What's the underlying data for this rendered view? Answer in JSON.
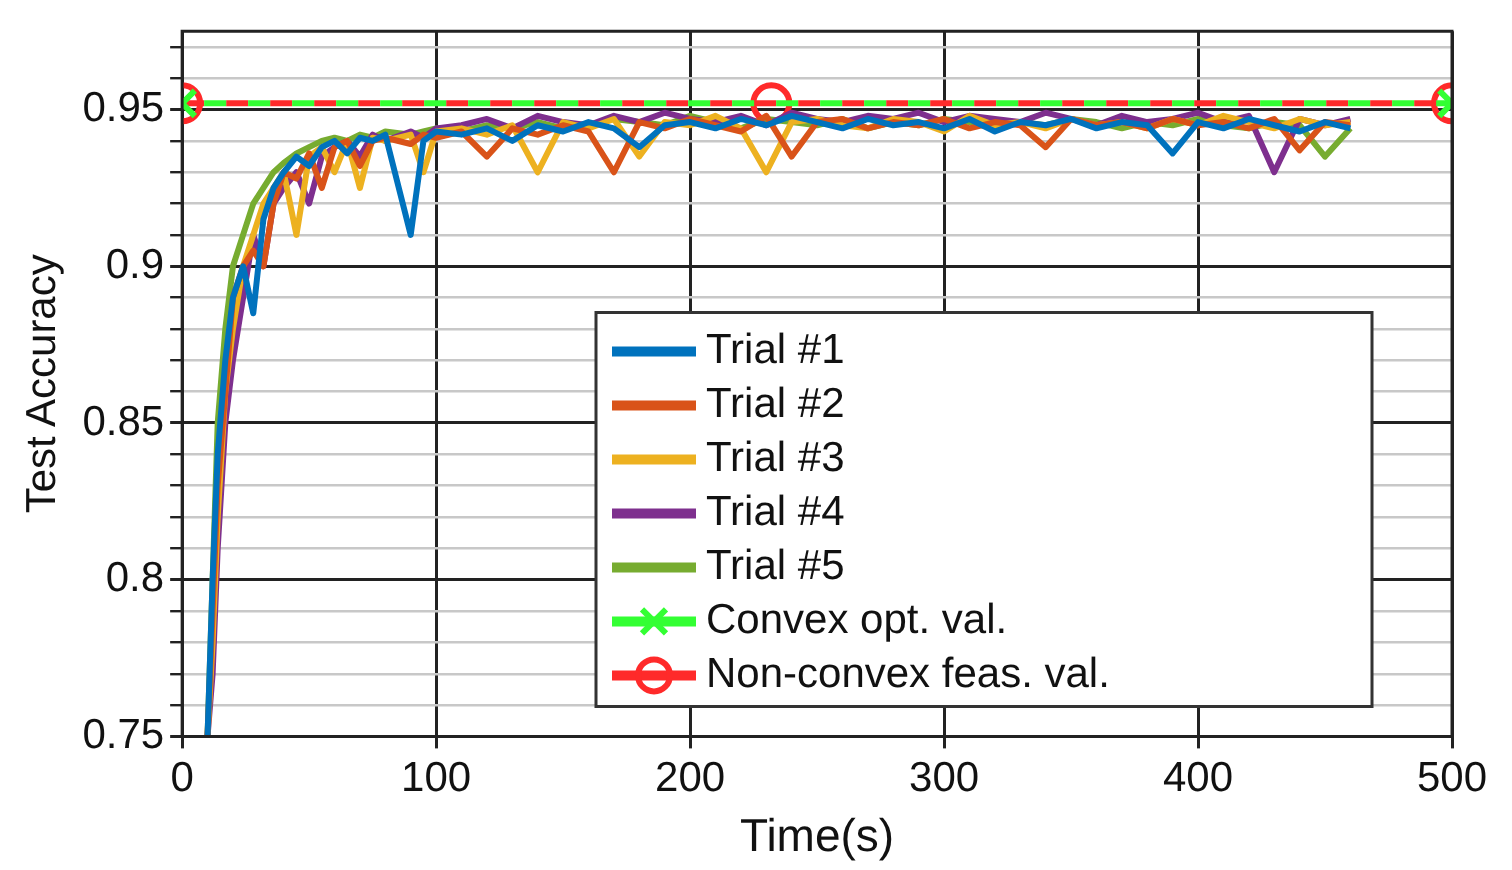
{
  "chart_data": {
    "type": "line",
    "xlabel": "Time(s)",
    "ylabel": "Test Accuracy",
    "x": [
      10,
      12,
      14,
      17,
      20,
      24,
      28,
      32,
      36,
      40,
      45,
      50,
      55,
      60,
      65,
      70,
      75,
      80,
      90,
      95,
      100,
      110,
      120,
      130,
      140,
      150,
      160,
      170,
      180,
      190,
      200,
      210,
      220,
      230,
      240,
      250,
      260,
      270,
      280,
      290,
      300,
      310,
      320,
      330,
      340,
      350,
      360,
      370,
      380,
      390,
      400,
      410,
      420,
      430,
      440,
      450,
      460
    ],
    "series": [
      {
        "name": "Trial #1",
        "color": "#0072bd",
        "values": [
          0.75,
          0.8,
          0.84,
          0.87,
          0.89,
          0.9,
          0.885,
          0.915,
          0.925,
          0.93,
          0.935,
          0.932,
          0.938,
          0.94,
          0.936,
          0.941,
          0.94,
          0.942,
          0.91,
          0.94,
          0.943,
          0.942,
          0.944,
          0.94,
          0.945,
          0.943,
          0.946,
          0.944,
          0.938,
          0.945,
          0.946,
          0.944,
          0.947,
          0.945,
          0.948,
          0.946,
          0.944,
          0.947,
          0.945,
          0.946,
          0.944,
          0.947,
          0.943,
          0.946,
          0.945,
          0.947,
          0.944,
          0.946,
          0.945,
          0.936,
          0.946,
          0.944,
          0.947,
          0.945,
          0.943,
          0.946,
          0.944
        ]
      },
      {
        "name": "Trial #2",
        "color": "#d95319",
        "values": [
          0.75,
          0.79,
          0.83,
          0.86,
          0.89,
          0.9,
          0.905,
          0.9,
          0.92,
          0.93,
          0.928,
          0.936,
          0.925,
          0.938,
          0.94,
          0.932,
          0.94,
          0.941,
          0.939,
          0.942,
          0.941,
          0.943,
          0.935,
          0.944,
          0.942,
          0.945,
          0.943,
          0.93,
          0.946,
          0.944,
          0.947,
          0.945,
          0.943,
          0.948,
          0.935,
          0.946,
          0.947,
          0.944,
          0.946,
          0.945,
          0.947,
          0.944,
          0.946,
          0.945,
          0.938,
          0.947,
          0.945,
          0.946,
          0.944,
          0.947,
          0.945,
          0.946,
          0.944,
          0.947,
          0.937,
          0.946,
          0.945
        ]
      },
      {
        "name": "Trial #3",
        "color": "#edb120",
        "values": [
          0.75,
          0.78,
          0.82,
          0.86,
          0.88,
          0.9,
          0.91,
          0.92,
          0.925,
          0.93,
          0.91,
          0.935,
          0.938,
          0.93,
          0.94,
          0.925,
          0.941,
          0.94,
          0.942,
          0.93,
          0.943,
          0.944,
          0.942,
          0.945,
          0.93,
          0.946,
          0.944,
          0.947,
          0.935,
          0.946,
          0.945,
          0.948,
          0.944,
          0.93,
          0.946,
          0.947,
          0.945,
          0.944,
          0.947,
          0.946,
          0.943,
          0.948,
          0.945,
          0.946,
          0.944,
          0.947,
          0.945,
          0.946,
          0.944,
          0.947,
          0.945,
          0.948,
          0.946,
          0.944,
          0.947,
          0.945,
          0.946
        ]
      },
      {
        "name": "Trial #4",
        "color": "#7e2f8e",
        "values": [
          0.75,
          0.77,
          0.81,
          0.85,
          0.87,
          0.89,
          0.91,
          0.9,
          0.92,
          0.925,
          0.93,
          0.92,
          0.935,
          0.938,
          0.94,
          0.935,
          0.942,
          0.94,
          0.943,
          0.941,
          0.944,
          0.945,
          0.947,
          0.944,
          0.948,
          0.946,
          0.945,
          0.948,
          0.946,
          0.949,
          0.947,
          0.946,
          0.948,
          0.945,
          0.949,
          0.947,
          0.946,
          0.948,
          0.947,
          0.949,
          0.946,
          0.948,
          0.947,
          0.946,
          0.949,
          0.947,
          0.945,
          0.948,
          0.946,
          0.947,
          0.949,
          0.946,
          0.948,
          0.93,
          0.947,
          0.945,
          0.947
        ]
      },
      {
        "name": "Trial #5",
        "color": "#77ac30",
        "values": [
          0.75,
          0.8,
          0.85,
          0.88,
          0.9,
          0.91,
          0.92,
          0.925,
          0.93,
          0.933,
          0.936,
          0.938,
          0.94,
          0.941,
          0.94,
          0.942,
          0.941,
          0.943,
          0.942,
          0.943,
          0.944,
          0.943,
          0.945,
          0.944,
          0.946,
          0.944,
          0.945,
          0.947,
          0.946,
          0.945,
          0.948,
          0.946,
          0.944,
          0.947,
          0.946,
          0.945,
          0.947,
          0.944,
          0.946,
          0.945,
          0.947,
          0.946,
          0.944,
          0.946,
          0.945,
          0.947,
          0.946,
          0.944,
          0.946,
          0.945,
          0.947,
          0.945,
          0.944,
          0.946,
          0.945,
          0.935,
          0.944
        ]
      },
      {
        "name": "Convex opt. val.",
        "color": "#33ff33",
        "x": [
          0,
          500
        ],
        "values": [
          0.952,
          0.952
        ],
        "marker": "cross",
        "line_style": "dashed"
      },
      {
        "name": "Non-convex feas. val.",
        "color": "#ff2a2a",
        "x": [
          0,
          232,
          500
        ],
        "values": [
          0.952,
          0.952,
          0.952
        ],
        "marker": "circle",
        "line_style": "dashed"
      }
    ],
    "xlim": [
      0,
      500
    ],
    "xticks": [
      0,
      100,
      200,
      300,
      400,
      500
    ],
    "ylim": [
      0.75,
      0.975
    ],
    "yticks": [
      {
        "value": 0.75,
        "label": "0.75"
      },
      {
        "value": 0.76,
        "label": null
      },
      {
        "value": 0.77,
        "label": null
      },
      {
        "value": 0.78,
        "label": null
      },
      {
        "value": 0.79,
        "label": null
      },
      {
        "value": 0.8,
        "label": "0.8"
      },
      {
        "value": 0.81,
        "label": null
      },
      {
        "value": 0.82,
        "label": null
      },
      {
        "value": 0.83,
        "label": null
      },
      {
        "value": 0.84,
        "label": null
      },
      {
        "value": 0.85,
        "label": "0.85"
      },
      {
        "value": 0.86,
        "label": null
      },
      {
        "value": 0.87,
        "label": null
      },
      {
        "value": 0.88,
        "label": null
      },
      {
        "value": 0.89,
        "label": null
      },
      {
        "value": 0.9,
        "label": "0.9"
      },
      {
        "value": 0.91,
        "label": null
      },
      {
        "value": 0.92,
        "label": null
      },
      {
        "value": 0.93,
        "label": null
      },
      {
        "value": 0.94,
        "label": null
      },
      {
        "value": 0.95,
        "label": "0.95"
      },
      {
        "value": 0.96,
        "label": null
      },
      {
        "value": 0.97,
        "label": null
      }
    ],
    "grid": true,
    "legend": "bottom right"
  }
}
